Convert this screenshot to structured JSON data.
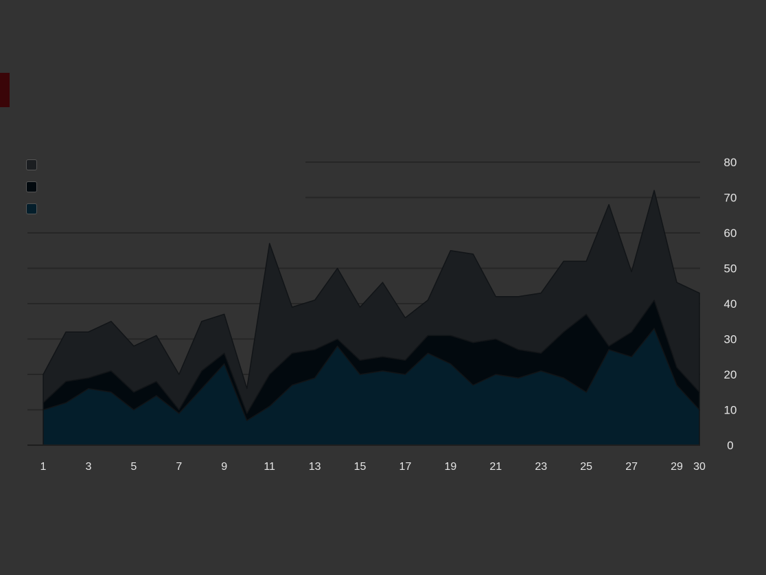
{
  "header": {
    "title": "",
    "subtitle": ""
  },
  "footer": {
    "source": ""
  },
  "colors": {
    "background": "#333333",
    "accent": "#3a0508",
    "series": [
      "#1b1e21",
      "#02090e",
      "#041e2b"
    ]
  },
  "chart_data": {
    "type": "area",
    "stacked": true,
    "title": "",
    "subtitle": "",
    "xlabel": "",
    "ylabel": "",
    "x": [
      "1",
      "2",
      "3",
      "4",
      "5",
      "6",
      "7",
      "8",
      "9",
      "10",
      "11",
      "12",
      "13",
      "14",
      "15",
      "16",
      "17",
      "18",
      "19",
      "20",
      "21",
      "22",
      "23",
      "24",
      "25",
      "26",
      "27",
      "28",
      "29",
      "30"
    ],
    "ylim": [
      0,
      80
    ],
    "yticks": [
      0,
      10,
      20,
      30,
      40,
      50,
      60,
      70,
      80
    ],
    "grid": true,
    "legend_position": "top-left",
    "series": [
      {
        "name": "",
        "color": "#041e2b",
        "values": [
          10,
          12,
          16,
          15,
          10,
          14,
          9,
          16,
          23,
          7,
          11,
          17,
          19,
          28,
          20,
          21,
          20,
          26,
          23,
          17,
          20,
          19,
          21,
          19,
          15,
          27,
          25,
          33,
          17,
          10
        ]
      },
      {
        "name": "",
        "color": "#02090e",
        "values": [
          2,
          6,
          3,
          6,
          5,
          4,
          1,
          5,
          3,
          2,
          9,
          9,
          8,
          2,
          4,
          4,
          4,
          5,
          8,
          12,
          10,
          8,
          5,
          13,
          22,
          1,
          7,
          8,
          5,
          5
        ]
      },
      {
        "name": "",
        "color": "#1b1e21",
        "values": [
          8,
          14,
          13,
          14,
          13,
          13,
          10,
          14,
          11,
          7,
          37,
          13,
          14,
          20,
          15,
          21,
          12,
          10,
          24,
          25,
          12,
          15,
          17,
          20,
          15,
          40,
          17,
          31,
          24,
          28
        ]
      }
    ]
  }
}
